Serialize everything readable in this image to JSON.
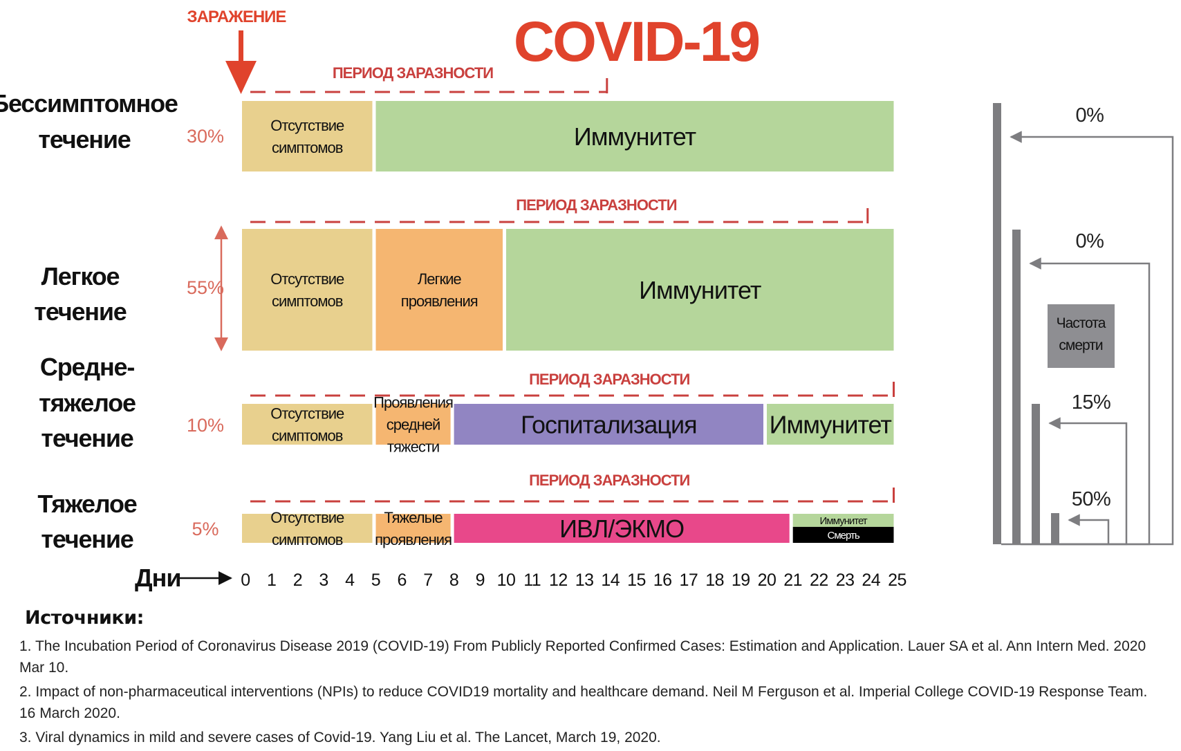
{
  "header": {
    "title": "COVID-19",
    "infection_label": "ЗАРАЖЕНИЕ"
  },
  "axis": {
    "label": "Дни",
    "ticks": [
      "0",
      "1",
      "2",
      "3",
      "4",
      "5",
      "6",
      "7",
      "8",
      "9",
      "10",
      "11",
      "12",
      "13",
      "14",
      "15",
      "16",
      "17",
      "18",
      "19",
      "20",
      "21",
      "22",
      "23",
      "24",
      "25"
    ]
  },
  "rows": [
    {
      "label_lines": [
        "Бессимптомное",
        "течение"
      ],
      "percent": "30%",
      "contagious_label": "ПЕРИОД ЗАРАЗНОСТИ",
      "contagious_end_day": 14,
      "death_rate": "0%",
      "segments": [
        {
          "label_lines": [
            "Отсутствие",
            "симптомов"
          ],
          "start": 0,
          "end": 5,
          "color": "#e8d08e"
        },
        {
          "label_lines": [
            "Иммунитет"
          ],
          "start": 5,
          "end": 25,
          "color": "#b5d69b"
        }
      ]
    },
    {
      "label_lines": [
        "Легкое",
        "течение"
      ],
      "percent": "55%",
      "contagious_label": "ПЕРИОД ЗАРАЗНОСТИ",
      "contagious_end_day": 24,
      "death_rate": "0%",
      "segments": [
        {
          "label_lines": [
            "Отсутствие",
            "симптомов"
          ],
          "start": 0,
          "end": 5,
          "color": "#e8d08e"
        },
        {
          "label_lines": [
            "Легкие",
            "проявления"
          ],
          "start": 5,
          "end": 10,
          "color": "#f5b671"
        },
        {
          "label_lines": [
            "Иммунитет"
          ],
          "start": 10,
          "end": 25,
          "color": "#b5d69b"
        }
      ]
    },
    {
      "label_lines": [
        "Средне-",
        "тяжелое",
        "течение"
      ],
      "percent": "10%",
      "contagious_label": "ПЕРИОД ЗАРАЗНОСТИ",
      "contagious_end_day": 25,
      "death_rate": "15%",
      "segments": [
        {
          "label_lines": [
            "Отсутствие",
            "симптомов"
          ],
          "start": 0,
          "end": 5,
          "color": "#e8d08e"
        },
        {
          "label_lines": [
            "Проявления",
            "средней",
            "тяжести"
          ],
          "start": 5,
          "end": 8,
          "color": "#f5b671"
        },
        {
          "label_lines": [
            "Госпитализация"
          ],
          "start": 8,
          "end": 20,
          "color": "#9185c2"
        },
        {
          "label_lines": [
            "Иммунитет"
          ],
          "start": 20,
          "end": 25,
          "color": "#b5d69b"
        }
      ]
    },
    {
      "label_lines": [
        "Тяжелое",
        "течение"
      ],
      "percent": "5%",
      "contagious_label": "ПЕРИОД ЗАРАЗНОСТИ",
      "contagious_end_day": 25,
      "death_rate": "50%",
      "segments": [
        {
          "label_lines": [
            "Отсутствие",
            "симптомов"
          ],
          "start": 0,
          "end": 5,
          "color": "#e8d08e"
        },
        {
          "label_lines": [
            "Тяжелые",
            "проявления"
          ],
          "start": 5,
          "end": 8,
          "color": "#f5b671"
        },
        {
          "label_lines": [
            "ИВЛ/ЭКМО"
          ],
          "start": 8,
          "end": 21,
          "color": "#e8488a"
        },
        {
          "label_lines": [
            "Иммунитет"
          ],
          "start": 21,
          "end": 25,
          "color": "#b5d69b",
          "part": "top"
        },
        {
          "label_lines": [
            "Смерть"
          ],
          "start": 21,
          "end": 25,
          "color": "#000000",
          "part": "bottom"
        }
      ]
    }
  ],
  "death_box_lines": [
    "Частота",
    "смерти"
  ],
  "sources": {
    "heading": "Источники:",
    "items": [
      "1. The Incubation Period of Coronavirus Disease 2019 (COVID-19) From Publicly Reported Confirmed Cases: Estimation and Application. Lauer SA et al. Ann Intern Med. 2020 Mar 10.",
      "2. Impact of non-pharmaceutical interventions (NPIs) to reduce COVID19 mortality and healthcare demand. Neil M Ferguson et al. Imperial College COVID-19 Response Team. 16 March 2020.",
      "3. Viral dynamics in mild and severe cases of Covid-19. Yang Liu et al. The Lancet, March 19, 2020."
    ]
  },
  "colors": {
    "accent_red": "#e0432c",
    "dash_red": "#c9403e",
    "percent_red": "#d96a5c",
    "gray_bar": "#7d7d80"
  }
}
